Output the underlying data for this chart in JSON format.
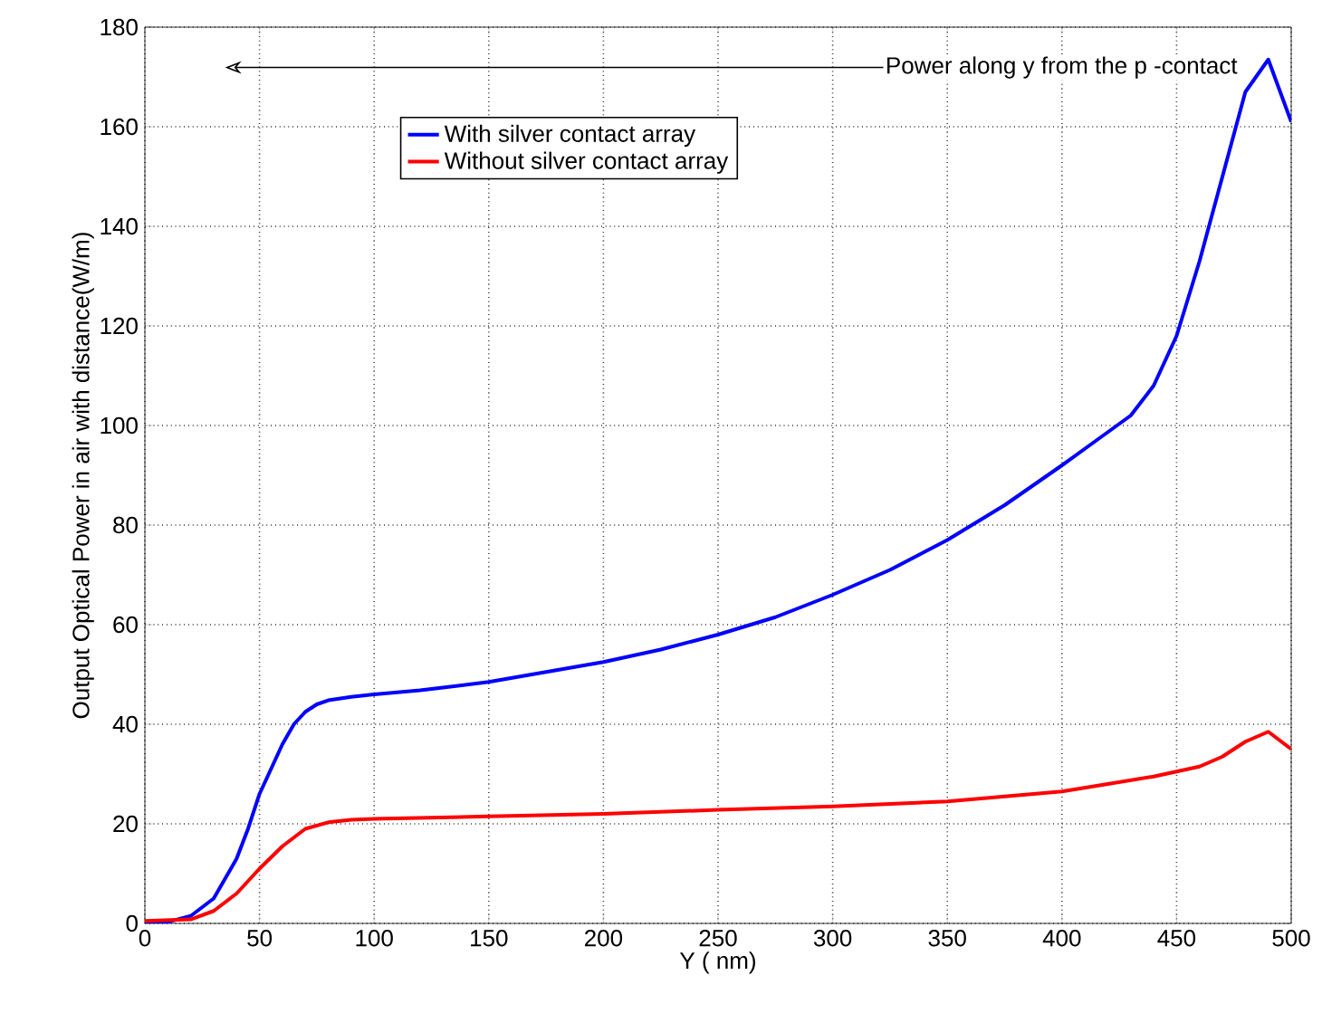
{
  "chart_data": {
    "type": "line",
    "xlabel": "Y ( nm)",
    "ylabel": "Output Optical Power in air with distance(W/m)",
    "annotations": [
      "Power along y from the p -contact"
    ],
    "xlim": [
      0,
      500
    ],
    "ylim": [
      0,
      180
    ],
    "xticks": [
      0,
      50,
      100,
      150,
      200,
      250,
      300,
      350,
      400,
      450,
      500
    ],
    "yticks": [
      0,
      20,
      40,
      60,
      80,
      100,
      120,
      140,
      160,
      180
    ],
    "grid": true,
    "legend": "top",
    "marker": "none",
    "line_style": "solid",
    "series": [
      {
        "name": "With silver contact array",
        "color": "#0000ff",
        "x": [
          0,
          10,
          20,
          30,
          40,
          45,
          50,
          55,
          60,
          65,
          70,
          75,
          80,
          90,
          100,
          120,
          150,
          175,
          200,
          225,
          250,
          275,
          300,
          325,
          350,
          375,
          400,
          415,
          430,
          440,
          450,
          460,
          470,
          480,
          490,
          500
        ],
        "values": [
          0,
          0.3,
          1.5,
          5,
          13,
          19,
          26,
          31,
          36,
          40,
          42.5,
          44,
          44.8,
          45.5,
          46,
          46.8,
          48.5,
          50.5,
          52.5,
          55,
          58,
          61.5,
          66,
          71,
          77,
          84,
          92,
          97,
          102,
          108,
          118,
          133,
          150,
          167,
          173.5,
          161
        ]
      },
      {
        "name": "Without silver contact array",
        "color": "#ff0000",
        "x": [
          0,
          20,
          30,
          40,
          50,
          60,
          70,
          80,
          90,
          100,
          150,
          200,
          250,
          300,
          350,
          400,
          420,
          440,
          460,
          470,
          480,
          490,
          500
        ],
        "values": [
          0.5,
          0.8,
          2.5,
          6,
          11,
          15.5,
          19,
          20.3,
          20.8,
          21,
          21.5,
          22,
          22.8,
          23.5,
          24.5,
          26.5,
          28,
          29.5,
          31.5,
          33.5,
          36.5,
          38.5,
          35
        ]
      }
    ]
  }
}
